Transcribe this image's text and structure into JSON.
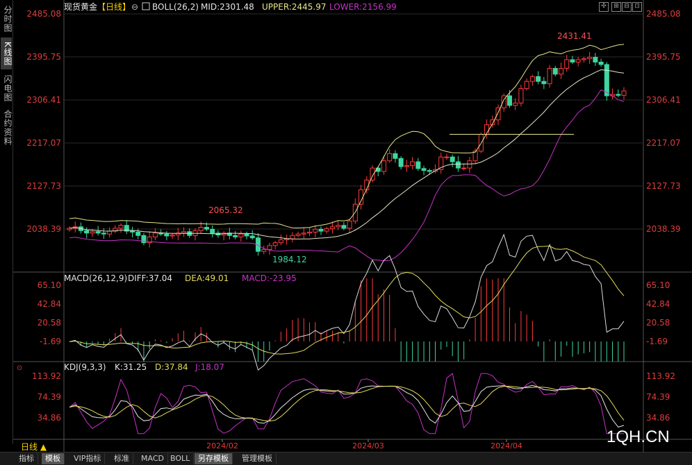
{
  "left_tabs": [
    "分时图",
    "K线图",
    "闪电图",
    "合约资料"
  ],
  "left_tab_active": 1,
  "main_panel": {
    "instrument": "现货黄金",
    "period_bracket": "【日线】",
    "indicator": "BOLL(26,2)",
    "mid": "MID:2301.48",
    "upper": "UPPER:2445.97",
    "lower": "LOWER:2156.99",
    "y_labels": [
      "2485.08",
      "2395.75",
      "2306.41",
      "2217.07",
      "2127.73",
      "2038.39"
    ],
    "high_label": "2431.41",
    "low_label": "1984.12",
    "mid_label": "2065.32"
  },
  "macd_panel": {
    "title": "MACD(26,12,9)",
    "diff": "DIFF:37.04",
    "dea": "DEA:49.01",
    "macd": "MACD:-23.95",
    "y_labels": [
      "65.10",
      "42.84",
      "20.58",
      "-1.69"
    ]
  },
  "kdj_panel": {
    "title": "KDJ(9,3,3)",
    "k": "K:31.25",
    "d": "D:37.84",
    "j": "J:18.07",
    "y_labels": [
      "113.92",
      "74.39",
      "34.86"
    ]
  },
  "x_labels": [
    "2024/02",
    "2024/03",
    "2024/04"
  ],
  "period_label": "日线 ▲",
  "bottom_tabs": [
    "指标",
    "模板",
    "VIP指标",
    "标准",
    "MACD",
    "BOLL",
    "另存模板",
    "管理模板"
  ],
  "bottom_tab_active": [
    1,
    6
  ],
  "watermark": "1QH.CN",
  "colors": {
    "up": "#ff3c3c",
    "down": "#3cd7a0",
    "upper": "#e6e68c",
    "mid": "#e6e6c8",
    "lower": "#c832c8",
    "diff": "#dcdcdc",
    "dea": "#e6dc5a",
    "j": "#c832c8"
  },
  "chart_data": {
    "type": "candlestick",
    "x_ticks": [
      "2024/02",
      "2024/03",
      "2024/04"
    ],
    "price_y_ticks": [
      2485.08,
      2395.75,
      2306.41,
      2217.07,
      2127.73,
      2038.39
    ],
    "annotations": [
      {
        "label": "2431.41",
        "type": "high"
      },
      {
        "label": "1984.12",
        "type": "low"
      },
      {
        "label": "2065.32",
        "type": "local-high"
      }
    ],
    "ohlc_close_approx": [
      2040,
      2043,
      2035,
      2030,
      2033,
      2030,
      2028,
      2034,
      2040,
      2046,
      2034,
      2032,
      2025,
      2010,
      2022,
      2030,
      2028,
      2024,
      2026,
      2030,
      2033,
      2025,
      2035,
      2042,
      2038,
      2030,
      2026,
      2030,
      2025,
      2022,
      2028,
      2024,
      2020,
      1992,
      1996,
      2004,
      2010,
      2016,
      2018,
      2025,
      2028,
      2030,
      2032,
      2038,
      2034,
      2039,
      2043,
      2046,
      2040,
      2055,
      2090,
      2120,
      2140,
      2165,
      2158,
      2180,
      2195,
      2185,
      2168,
      2170,
      2178,
      2164,
      2160,
      2158,
      2162,
      2188,
      2188,
      2178,
      2165,
      2165,
      2180,
      2200,
      2235,
      2255,
      2265,
      2290,
      2315,
      2295,
      2300,
      2330,
      2345,
      2355,
      2345,
      2340,
      2372,
      2360,
      2372,
      2390,
      2385,
      2390,
      2392,
      2395,
      2385,
      2380,
      2315,
      2318,
      2316,
      2325
    ],
    "macd_y_ticks": [
      65.1,
      42.84,
      20.58,
      -1.69
    ],
    "kdj_y_ticks": [
      113.92,
      74.39,
      34.86
    ]
  }
}
